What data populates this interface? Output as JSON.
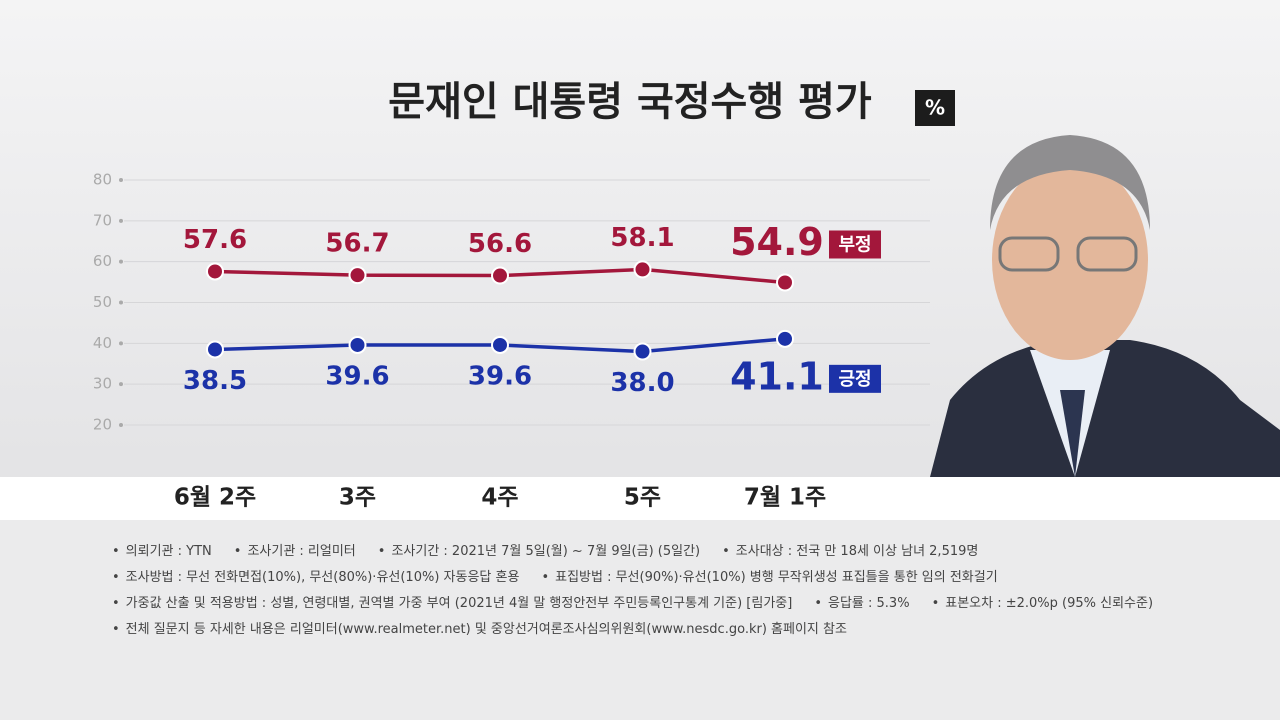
{
  "chart_data": {
    "type": "line",
    "title": "문재인 대통령 국정수행 평가",
    "unit": "%",
    "categories": [
      "6월 2주",
      "3주",
      "4주",
      "5주",
      "7월 1주"
    ],
    "series": [
      {
        "name": "부정",
        "color": "#a3173b",
        "values": [
          57.6,
          56.7,
          56.6,
          58.1,
          54.9
        ]
      },
      {
        "name": "긍정",
        "color": "#1c32a8",
        "values": [
          38.5,
          39.6,
          39.6,
          38.0,
          41.1
        ],
        "value_labels": [
          "38.5",
          "39.6",
          "39.6",
          "38.0",
          "41.1"
        ]
      }
    ],
    "ylim": [
      20,
      80
    ],
    "yticks": [
      20,
      30,
      40,
      50,
      60,
      70,
      80
    ],
    "grid": true
  },
  "notes": [
    [
      "의뢰기관 : YTN",
      "조사기관 : 리얼미터",
      "조사기간 : 2021년 7월 5일(월) ~ 7월 9일(금) (5일간)",
      "조사대상 : 전국 만 18세 이상 남녀 2,519명"
    ],
    [
      "조사방법 : 무선 전화면접(10%), 무선(80%)·유선(10%) 자동응답 혼용",
      "표집방법 : 무선(90%)·유선(10%) 병행 무작위생성 표집틀을 통한 임의 전화걸기"
    ],
    [
      "가중값 산출 및 적용방법 : 성별, 연령대별, 권역별 가중 부여 (2021년 4월 말 행정안전부 주민등록인구통계 기준) [림가중]",
      "응답률 : 5.3%",
      "표본오차 : ±2.0%p (95% 신뢰수준)"
    ],
    [
      "전체 질문지 등 자세한 내용은 리얼미터(www.realmeter.net) 및 중앙선거여론조사심의위원회(www.nesdc.go.kr) 홈페이지 참조"
    ]
  ]
}
